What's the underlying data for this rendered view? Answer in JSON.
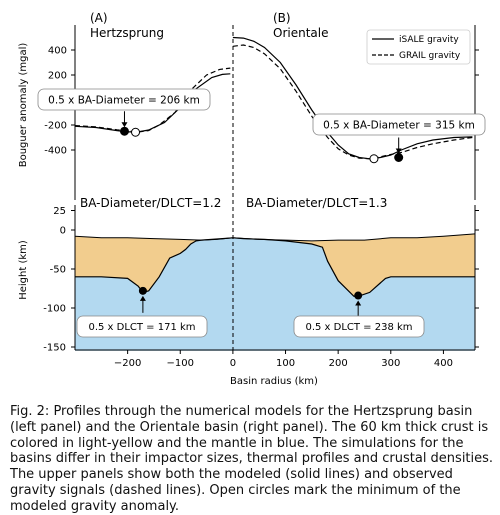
{
  "figure": {
    "panel_a_label": "(A)",
    "panel_a_title": "Hertzsprung",
    "panel_b_label": "(B)",
    "panel_b_title": "Orientale",
    "gravity_ylabel": "Bouguer anomaly (mgal)",
    "height_ylabel": "Height (km)",
    "xlabel": "Basin radius (km)",
    "ratio_a": "BA-Diameter/DLCT=1.2",
    "ratio_b": "BA-Diameter/DLCT=1.3",
    "callout_ba_a": "0.5 x BA-Diameter = 206 km",
    "callout_ba_b": "0.5 x BA-Diameter = 315 km",
    "callout_dlct_a": "0.5 x DLCT = 171 km",
    "callout_dlct_b": "0.5 x DLCT = 238 km"
  },
  "legend": {
    "isale": "iSALE gravity",
    "grail": "GRAIL gravity"
  },
  "colors": {
    "crust": "#f2cd8e",
    "mantle": "#b3d9f0"
  },
  "chart_data": [
    {
      "type": "line",
      "panel": "gravity",
      "xlim": [
        -300,
        460
      ],
      "ylim": [
        -600,
        600
      ],
      "xticks": [
        -200,
        -100,
        0,
        100,
        200,
        300,
        400
      ],
      "yticks": [
        -400,
        -200,
        200,
        400
      ],
      "legend_position": "top-right",
      "series": [
        {
          "name": "iSALE gravity",
          "style": "solid",
          "basin": "Hertzsprung",
          "x": [
            -300,
            -260,
            -220,
            -200,
            -180,
            -160,
            -130,
            -100,
            -70,
            -40,
            -20,
            -5
          ],
          "y": [
            -210,
            -220,
            -245,
            -255,
            -255,
            -240,
            -180,
            -60,
            90,
            180,
            205,
            210
          ]
        },
        {
          "name": "GRAIL gravity",
          "style": "dashed",
          "basin": "Hertzsprung",
          "x": [
            -300,
            -260,
            -220,
            -200,
            -180,
            -160,
            -140,
            -110,
            -80,
            -50,
            -25,
            -5
          ],
          "y": [
            -205,
            -215,
            -238,
            -248,
            -255,
            -245,
            -200,
            -100,
            80,
            200,
            245,
            255
          ]
        },
        {
          "name": "iSALE gravity",
          "style": "solid",
          "basin": "Orientale",
          "x": [
            0,
            20,
            40,
            60,
            90,
            120,
            150,
            180,
            200,
            220,
            240,
            260,
            280,
            300,
            320,
            350,
            380,
            420,
            455
          ],
          "y": [
            500,
            495,
            470,
            420,
            300,
            120,
            -80,
            -260,
            -360,
            -430,
            -460,
            -470,
            -460,
            -440,
            -400,
            -350,
            -320,
            -300,
            -295
          ]
        },
        {
          "name": "GRAIL gravity",
          "style": "dashed",
          "basin": "Orientale",
          "x": [
            0,
            20,
            40,
            60,
            90,
            120,
            150,
            180,
            200,
            220,
            240,
            260,
            280,
            300,
            320,
            350,
            380,
            420,
            455
          ],
          "y": [
            430,
            440,
            420,
            370,
            250,
            70,
            -130,
            -300,
            -390,
            -440,
            -465,
            -470,
            -455,
            -435,
            -420,
            -380,
            -350,
            -320,
            -300
          ]
        }
      ],
      "markers": [
        {
          "basin": "Hertzsprung",
          "kind": "ba_center",
          "x": -206,
          "y": -250,
          "filled": true
        },
        {
          "basin": "Hertzsprung",
          "kind": "model_min",
          "x": -185,
          "y": -258,
          "filled": false
        },
        {
          "basin": "Orientale",
          "kind": "model_min",
          "x": 268,
          "y": -470,
          "filled": false
        },
        {
          "basin": "Orientale",
          "kind": "ba_center",
          "x": 315,
          "y": -460,
          "filled": true
        }
      ]
    },
    {
      "type": "area",
      "panel": "height",
      "xlim": [
        -300,
        460
      ],
      "ylim": [
        -155,
        30
      ],
      "xticks": [
        -200,
        -100,
        0,
        100,
        200,
        300,
        400
      ],
      "yticks": [
        -150,
        -100,
        -50,
        0,
        25
      ],
      "series": [
        {
          "name": "crust",
          "x": [
            -300,
            -250,
            -200,
            -150,
            -100,
            -60,
            -30,
            0,
            50,
            100,
            150,
            200,
            250,
            300,
            350,
            400,
            460
          ],
          "y": [
            -8,
            -10,
            -10,
            -11,
            -12,
            -13,
            -12,
            -10,
            -12,
            -13,
            -14,
            -13,
            -13,
            -10,
            -10,
            -8,
            -5
          ]
        },
        {
          "name": "crust-mantle interface",
          "x": [
            -300,
            -250,
            -200,
            -180,
            -171,
            -160,
            -140,
            -120,
            -100,
            -90,
            -80,
            -70,
            -60,
            -40,
            -20,
            0,
            20,
            60,
            100,
            150,
            170,
            180,
            200,
            230,
            238,
            260,
            280,
            290,
            300,
            350,
            400,
            460
          ],
          "y": [
            -60,
            -60,
            -62,
            -72,
            -80,
            -78,
            -60,
            -36,
            -30,
            -25,
            -18,
            -14,
            -13,
            -12,
            -11,
            -10,
            -11,
            -12,
            -14,
            -18,
            -22,
            -40,
            -65,
            -85,
            -85,
            -80,
            -68,
            -62,
            -60,
            -60,
            -60,
            -60
          ]
        }
      ],
      "markers": [
        {
          "basin": "Hertzsprung",
          "kind": "dlct",
          "x": -171,
          "y": -78
        },
        {
          "basin": "Orientale",
          "kind": "dlct",
          "x": 238,
          "y": -84
        }
      ]
    }
  ],
  "caption": "Fig. 2: Profiles through the numerical models for the Hertzsprung basin (left panel) and the Orientale basin (right panel). The 60 km thick crust is colored in light-yellow and the mantle in blue. The simulations for the basins differ in their impactor sizes, thermal profiles and crustal densities. The upper panels show both the modeled (solid lines) and observed gravity signals (dashed lines). Open circles mark the minimum of the modeled gravity anomaly."
}
